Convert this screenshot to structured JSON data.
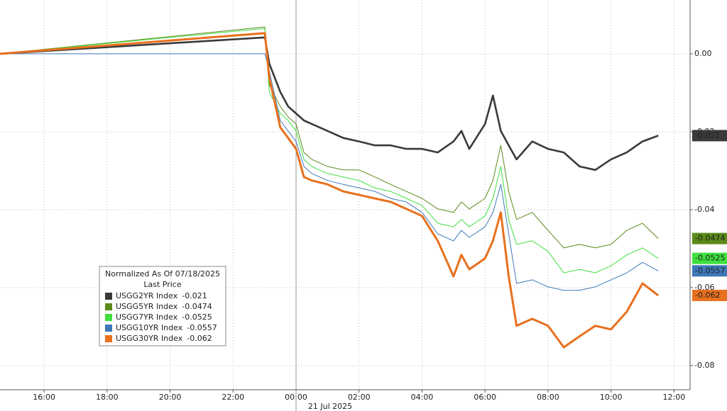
{
  "chart_data": {
    "type": "line",
    "legend_title": "Normalized As Of 07/18/2025",
    "legend_subtitle": "Last Price",
    "date_label": "21 Jul 2025",
    "x": [
      -9.4,
      -0.99,
      -0.85,
      -0.5,
      -0.25,
      0,
      0.25,
      0.5,
      1,
      1.5,
      2,
      2.5,
      3,
      3.5,
      4,
      4.5,
      5,
      5.25,
      5.5,
      6,
      6.25,
      6.5,
      6.75,
      7,
      7.5,
      8,
      8.5,
      9,
      9.5,
      10,
      10.5,
      11,
      11.5
    ],
    "xlim": [
      -9.4,
      12.51
    ],
    "xticks": [
      {
        "value": -8,
        "label": "16:00"
      },
      {
        "value": -6,
        "label": "18:00"
      },
      {
        "value": -4,
        "label": "20:00"
      },
      {
        "value": -2,
        "label": "22:00"
      },
      {
        "value": 0,
        "label": "00:00"
      },
      {
        "value": 2,
        "label": "02:00"
      },
      {
        "value": 4,
        "label": "04:00"
      },
      {
        "value": 6,
        "label": "06:00"
      },
      {
        "value": 8,
        "label": "08:00"
      },
      {
        "value": 10,
        "label": "10:00"
      },
      {
        "value": 12,
        "label": "12:00"
      }
    ],
    "ylim": [
      -0.0862,
      0.0138
    ],
    "yticks": [
      {
        "value": 0,
        "label": "0.00"
      },
      -0.02,
      -0.04,
      -0.06,
      -0.08
    ],
    "grid": true,
    "series": [
      {
        "name": "USGG2YR Index",
        "color": "#3a3a3a",
        "values": [
          0,
          0.0042,
          -0.0025,
          -0.0098,
          -0.0135,
          -0.0153,
          -0.0171,
          -0.018,
          -0.0198,
          -0.0216,
          -0.0225,
          -0.0235,
          -0.0235,
          -0.0244,
          -0.0244,
          -0.0253,
          -0.0225,
          -0.0198,
          -0.0244,
          -0.018,
          -0.0107,
          -0.0198,
          -0.0235,
          -0.0271,
          -0.0225,
          -0.0244,
          -0.0253,
          -0.0289,
          -0.0298,
          -0.0271,
          -0.0253,
          -0.0225,
          -0.021
        ]
      },
      {
        "name": "USGG5YR Index",
        "color": "#5b8a1a",
        "values": [
          0,
          0.0069,
          -0.008,
          -0.0135,
          -0.0162,
          -0.018,
          -0.0253,
          -0.0271,
          -0.0289,
          -0.0298,
          -0.0298,
          -0.0316,
          -0.0335,
          -0.0353,
          -0.0371,
          -0.0398,
          -0.0407,
          -0.038,
          -0.0398,
          -0.0371,
          -0.0325,
          -0.0235,
          -0.0353,
          -0.0425,
          -0.0407,
          -0.0453,
          -0.0498,
          -0.0489,
          -0.0498,
          -0.0489,
          -0.0453,
          -0.0435,
          -0.0474
        ]
      },
      {
        "name": "USGG7YR Index",
        "color": "#3ee03e",
        "values": [
          0,
          0.0065,
          -0.0098,
          -0.0153,
          -0.0171,
          -0.0198,
          -0.0271,
          -0.0289,
          -0.0307,
          -0.0316,
          -0.0325,
          -0.0344,
          -0.0353,
          -0.0371,
          -0.0389,
          -0.0435,
          -0.0444,
          -0.0425,
          -0.0444,
          -0.0416,
          -0.0371,
          -0.0289,
          -0.0425,
          -0.0489,
          -0.048,
          -0.0507,
          -0.0562,
          -0.0553,
          -0.0562,
          -0.0544,
          -0.0516,
          -0.0498,
          -0.0525
        ]
      },
      {
        "name": "USGG10YR Index",
        "color": "#3f78b8",
        "values": [
          0,
          0,
          -0.0044,
          -0.0171,
          -0.0198,
          -0.0225,
          -0.0289,
          -0.0307,
          -0.0325,
          -0.0335,
          -0.0344,
          -0.0353,
          -0.0371,
          -0.038,
          -0.0407,
          -0.0462,
          -0.048,
          -0.0453,
          -0.0471,
          -0.0444,
          -0.0407,
          -0.0335,
          -0.0462,
          -0.0589,
          -0.058,
          -0.0598,
          -0.0607,
          -0.0607,
          -0.0598,
          -0.058,
          -0.0562,
          -0.0535,
          -0.0557
        ]
      },
      {
        "name": "USGG30YR Index",
        "color": "#e8701e",
        "values": [
          0,
          0.0053,
          -0.0062,
          -0.0189,
          -0.0216,
          -0.0244,
          -0.0316,
          -0.0325,
          -0.0335,
          -0.0353,
          -0.0362,
          -0.0371,
          -0.038,
          -0.0398,
          -0.0416,
          -0.048,
          -0.0571,
          -0.0516,
          -0.0553,
          -0.0525,
          -0.048,
          -0.0407,
          -0.0571,
          -0.0698,
          -0.068,
          -0.0698,
          -0.0753,
          -0.0725,
          -0.0698,
          -0.0707,
          -0.0662,
          -0.0589,
          -0.062
        ]
      }
    ]
  }
}
